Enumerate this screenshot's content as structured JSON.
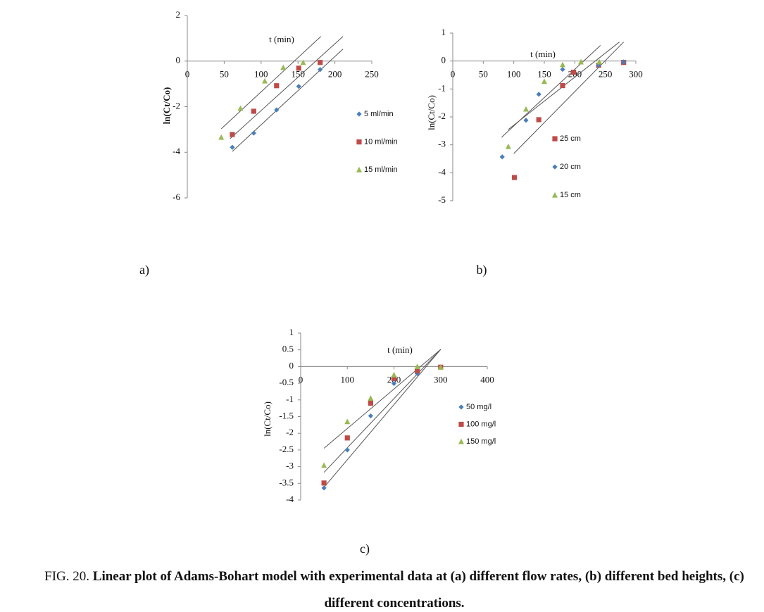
{
  "chart_data": [
    {
      "type": "scatter",
      "panel": "a)",
      "x_label": "t (min)",
      "y_label": "ln(Ct/Co)",
      "xlim": [
        0,
        250
      ],
      "xticks": [
        0,
        50,
        100,
        150,
        200,
        250
      ],
      "ylim": [
        -6,
        2
      ],
      "yticks": [
        -6,
        -4,
        -2,
        0,
        2
      ],
      "series": [
        {
          "name": "5 ml/min",
          "color": "#4a7ebb",
          "marker": "diamond",
          "x": [
            61,
            90,
            121,
            151,
            180
          ],
          "values": [
            -3.78,
            -3.16,
            -2.14,
            -1.11,
            -0.37
          ]
        },
        {
          "name": "10 ml/min",
          "color": "#be4b48",
          "marker": "square",
          "x": [
            61,
            90,
            121,
            151,
            180
          ],
          "values": [
            -3.22,
            -2.2,
            -1.08,
            -0.31,
            -0.06
          ]
        },
        {
          "name": "15 ml/min",
          "color": "#98b954",
          "marker": "triangle",
          "x": [
            46,
            72,
            105,
            130,
            157
          ],
          "values": [
            -3.34,
            -2.07,
            -0.87,
            -0.28,
            -0.06
          ]
        }
      ],
      "trendlines": [
        {
          "x": [
            46,
            181
          ],
          "y": [
            -2.97,
            1.08
          ]
        },
        {
          "x": [
            58,
            211
          ],
          "y": [
            -3.4,
            1.08
          ]
        },
        {
          "x": [
            61,
            211
          ],
          "y": [
            -3.96,
            0.53
          ]
        }
      ]
    },
    {
      "type": "scatter",
      "panel": "b)",
      "x_label": "t (min)",
      "y_label": "ln(Ct/Co)",
      "xlim": [
        0,
        300
      ],
      "xticks": [
        0,
        50,
        100,
        150,
        200,
        250,
        300
      ],
      "ylim": [
        -5,
        1
      ],
      "yticks": [
        -5,
        -4,
        -3,
        -2,
        -1,
        0,
        1
      ],
      "series": [
        {
          "name": "25 cm",
          "color": "#be4b48",
          "marker": "square",
          "x": [
            101,
            141,
            180,
            198,
            239,
            280
          ],
          "values": [
            -4.17,
            -2.1,
            -0.88,
            -0.4,
            -0.15,
            -0.05
          ]
        },
        {
          "name": "20 cm",
          "color": "#4a7ebb",
          "marker": "diamond",
          "x": [
            81,
            120,
            141,
            180,
            239,
            280
          ],
          "values": [
            -3.43,
            -2.12,
            -1.19,
            -0.3,
            -0.15,
            -0.03
          ]
        },
        {
          "name": "15 cm",
          "color": "#98b954",
          "marker": "triangle",
          "x": [
            91,
            120,
            150,
            180,
            210,
            240
          ],
          "values": [
            -3.06,
            -1.72,
            -0.73,
            -0.13,
            -0.03,
            -0.03
          ]
        }
      ],
      "trendlines": [
        {
          "x": [
            80,
            242
          ],
          "y": [
            -2.73,
            0.56
          ]
        },
        {
          "x": [
            91,
            273
          ],
          "y": [
            -2.45,
            0.68
          ]
        },
        {
          "x": [
            100,
            280
          ],
          "y": [
            -3.31,
            0.68
          ]
        }
      ]
    },
    {
      "type": "scatter",
      "panel": "c)",
      "x_label": "t (min)",
      "y_label": "ln(Ct/Co)",
      "xlim": [
        0,
        400
      ],
      "xticks": [
        0,
        100,
        200,
        300,
        400
      ],
      "ylim": [
        -4,
        1
      ],
      "yticks": [
        -4,
        -3.5,
        -3,
        -2.5,
        -2,
        -1.5,
        -1,
        -0.5,
        0,
        0.5,
        1
      ],
      "series": [
        {
          "name": "50 mg/l",
          "color": "#4a7ebb",
          "marker": "diamond",
          "x": [
            50,
            100,
            150,
            200,
            250,
            300
          ],
          "values": [
            -3.64,
            -2.5,
            -1.48,
            -0.51,
            -0.21,
            -0.02
          ]
        },
        {
          "name": "100 mg/l",
          "color": "#be4b48",
          "marker": "square",
          "x": [
            50,
            100,
            150,
            200,
            250,
            300
          ],
          "values": [
            -3.49,
            -2.14,
            -1.1,
            -0.36,
            -0.13,
            -0.02
          ]
        },
        {
          "name": "150 mg/l",
          "color": "#98b954",
          "marker": "triangle",
          "x": [
            50,
            100,
            150,
            200,
            250,
            300
          ],
          "values": [
            -2.96,
            -1.65,
            -0.95,
            -0.25,
            0,
            -0.02
          ]
        }
      ],
      "trendlines": [
        {
          "x": [
            50,
            300
          ],
          "y": [
            -2.45,
            0.51
          ]
        },
        {
          "x": [
            50,
            300
          ],
          "y": [
            -3.17,
            0.51
          ]
        },
        {
          "x": [
            50,
            300
          ],
          "y": [
            -3.62,
            0.51
          ]
        }
      ]
    }
  ],
  "caption": {
    "number": "FIG. 20.",
    "text": "Linear plot of Adams-Bohart model with experimental data at (a) different flow rates, (b) different bed heights, (c) different concentrations."
  }
}
